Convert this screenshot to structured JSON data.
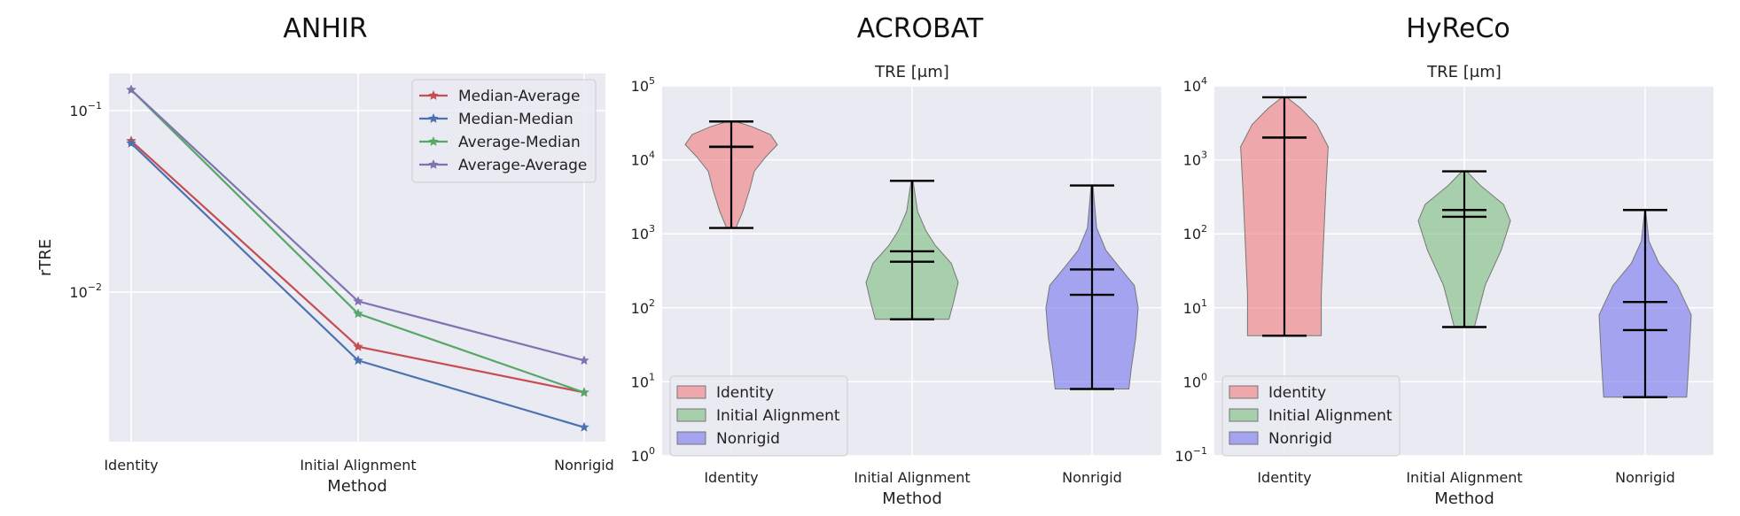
{
  "chart_data": [
    {
      "type": "line",
      "suptitle": "ANHIR",
      "title": "",
      "xlabel": "Method",
      "ylabel": "rTRE",
      "yscale": "log",
      "ylim": [
        0.0015,
        0.16
      ],
      "yticks": [
        {
          "value": 0.01,
          "base": "10",
          "exp": "−2"
        },
        {
          "value": 0.1,
          "base": "10",
          "exp": "−1"
        }
      ],
      "categories": [
        "Identity",
        "Initial Alignment",
        "Nonrigid"
      ],
      "grid": true,
      "legend_position": "top-right",
      "series": [
        {
          "name": "Median-Average",
          "color": "#c44e52",
          "values": [
            0.068,
            0.005,
            0.0028
          ]
        },
        {
          "name": "Median-Median",
          "color": "#4c72b0",
          "values": [
            0.066,
            0.0042,
            0.0018
          ]
        },
        {
          "name": "Average-Median",
          "color": "#55a868",
          "values": [
            0.13,
            0.0076,
            0.0028
          ]
        },
        {
          "name": "Average-Average",
          "color": "#8172b2",
          "values": [
            0.13,
            0.0089,
            0.0042
          ]
        }
      ]
    },
    {
      "type": "violin",
      "suptitle": "ACROBAT",
      "title": "TRE [μm]",
      "xlabel": "Method",
      "ylabel": "",
      "yscale": "log",
      "ylim": [
        1,
        100000
      ],
      "yticks": [
        {
          "value": 1,
          "base": "10",
          "exp": "0"
        },
        {
          "value": 10,
          "base": "10",
          "exp": "1"
        },
        {
          "value": 100,
          "base": "10",
          "exp": "2"
        },
        {
          "value": 1000,
          "base": "10",
          "exp": "3"
        },
        {
          "value": 10000,
          "base": "10",
          "exp": "4"
        },
        {
          "value": 100000,
          "base": "10",
          "exp": "5"
        }
      ],
      "categories": [
        "Identity",
        "Initial Alignment",
        "Nonrigid"
      ],
      "grid": true,
      "legend_position": "bottom-left",
      "series": [
        {
          "name": "Identity",
          "color": "#f08080",
          "min": 1200,
          "max": 33000,
          "median": 15000,
          "mean": 15000,
          "profile": [
            [
              1200,
              0.1
            ],
            [
              2000,
              0.25
            ],
            [
              4000,
              0.4
            ],
            [
              7000,
              0.5
            ],
            [
              11000,
              0.75
            ],
            [
              16000,
              1.0
            ],
            [
              22000,
              0.85
            ],
            [
              28000,
              0.45
            ],
            [
              33000,
              0.1
            ]
          ]
        },
        {
          "name": "Initial Alignment",
          "color": "#7fbf7f",
          "min": 70,
          "max": 5200,
          "median": 420,
          "mean": 580,
          "profile": [
            [
              70,
              0.8
            ],
            [
              120,
              0.9
            ],
            [
              220,
              1.0
            ],
            [
              400,
              0.85
            ],
            [
              700,
              0.5
            ],
            [
              1100,
              0.3
            ],
            [
              2000,
              0.12
            ],
            [
              5200,
              0.02
            ]
          ]
        },
        {
          "name": "Nonrigid",
          "color": "#7777ee",
          "min": 8,
          "max": 4500,
          "median": 150,
          "mean": 330,
          "profile": [
            [
              8,
              0.8
            ],
            [
              15,
              0.85
            ],
            [
              40,
              0.95
            ],
            [
              100,
              1.0
            ],
            [
              200,
              0.92
            ],
            [
              350,
              0.6
            ],
            [
              600,
              0.3
            ],
            [
              1200,
              0.1
            ],
            [
              4500,
              0.02
            ]
          ]
        }
      ]
    },
    {
      "type": "violin",
      "suptitle": "HyReCo",
      "title": "TRE [μm]",
      "xlabel": "Method",
      "ylabel": "",
      "yscale": "log",
      "ylim": [
        0.1,
        10000
      ],
      "yticks": [
        {
          "value": 0.1,
          "base": "10",
          "exp": "−1"
        },
        {
          "value": 1,
          "base": "10",
          "exp": "0"
        },
        {
          "value": 10,
          "base": "10",
          "exp": "1"
        },
        {
          "value": 100,
          "base": "10",
          "exp": "2"
        },
        {
          "value": 1000,
          "base": "10",
          "exp": "3"
        },
        {
          "value": 10000,
          "base": "10",
          "exp": "4"
        }
      ],
      "categories": [
        "Identity",
        "Initial Alignment",
        "Nonrigid"
      ],
      "grid": true,
      "legend_position": "bottom-left",
      "series": [
        {
          "name": "Identity",
          "color": "#f08080",
          "min": 4.2,
          "max": 7000,
          "median": 2000,
          "mean": 2000,
          "profile": [
            [
              4.2,
              0.8
            ],
            [
              15,
              0.8
            ],
            [
              80,
              0.85
            ],
            [
              400,
              0.9
            ],
            [
              1500,
              0.95
            ],
            [
              3000,
              0.7
            ],
            [
              5000,
              0.35
            ],
            [
              7000,
              0.05
            ]
          ]
        },
        {
          "name": "Initial Alignment",
          "color": "#7fbf7f",
          "min": 5.5,
          "max": 700,
          "median": 170,
          "mean": 210,
          "profile": [
            [
              5.5,
              0.22
            ],
            [
              20,
              0.45
            ],
            [
              60,
              0.8
            ],
            [
              150,
              1.0
            ],
            [
              250,
              0.85
            ],
            [
              450,
              0.35
            ],
            [
              700,
              0.05
            ]
          ]
        },
        {
          "name": "Nonrigid",
          "color": "#7777ee",
          "min": 0.62,
          "max": 210,
          "median": 5,
          "mean": 12,
          "profile": [
            [
              0.62,
              0.9
            ],
            [
              2,
              0.95
            ],
            [
              8,
              1.0
            ],
            [
              20,
              0.7
            ],
            [
              40,
              0.3
            ],
            [
              80,
              0.08
            ],
            [
              210,
              0.01
            ]
          ]
        }
      ]
    }
  ]
}
